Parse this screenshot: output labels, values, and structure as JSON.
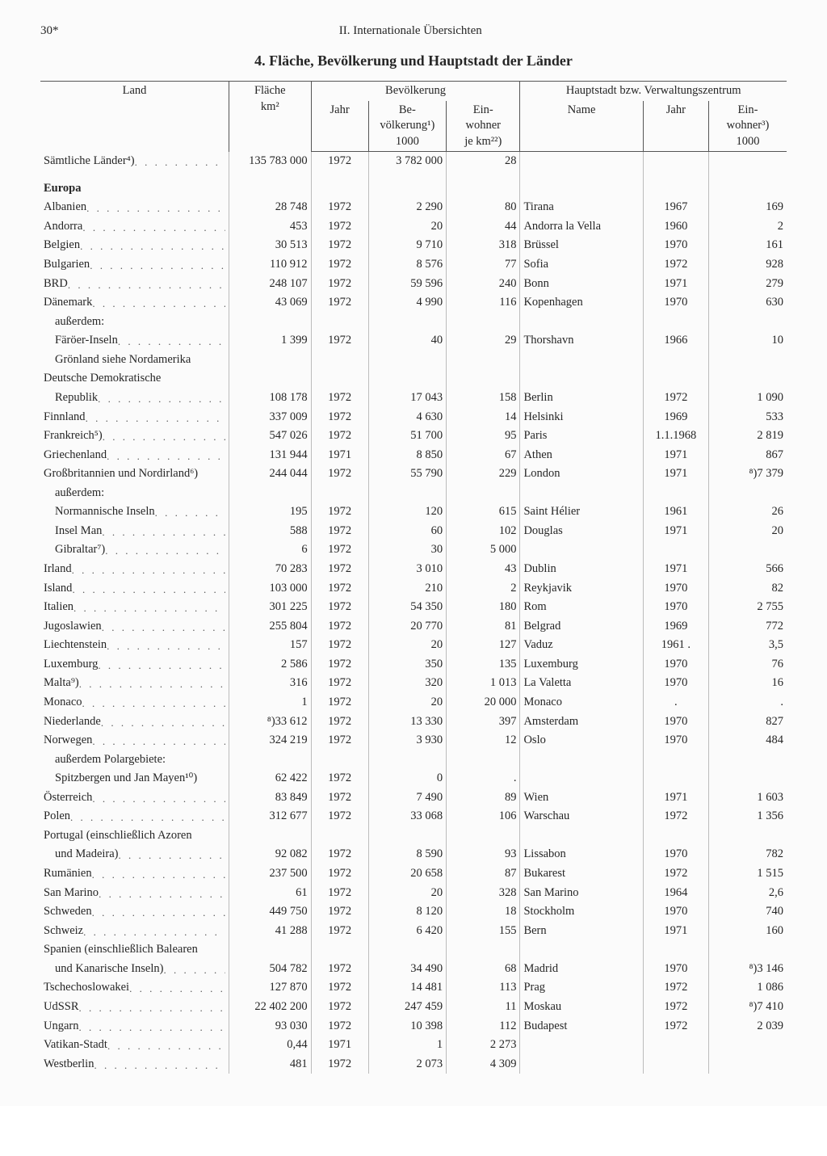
{
  "page": {
    "number": "30*",
    "running_head": "II. Internationale Übersichten",
    "title": "4. Fläche, Bevölkerung und Hauptstadt der Länder"
  },
  "columns": {
    "land": "Land",
    "flaeche": "Fläche\nkm²",
    "bev_group": "Bevölkerung",
    "haupt_group": "Hauptstadt bzw. Verwaltungszentrum",
    "jahr": "Jahr",
    "bev": "Be-\nvölkerung¹)\n1000",
    "dichte": "Ein-\nwohner\nje km²²)",
    "name": "Name",
    "hjahr": "Jahr",
    "hbev": "Ein-\nwohner³)\n1000"
  },
  "rows": [
    {
      "type": "row",
      "indent": 0,
      "dots": true,
      "land": "Sämtliche Länder⁴)",
      "flaeche": "135 783 000",
      "jahr": "1972",
      "bev": "3 782 000",
      "dichte": "28",
      "cap": "",
      "cjahr": "",
      "cbev": "",
      "pad_top": true
    },
    {
      "type": "section",
      "land": "Europa"
    },
    {
      "type": "row",
      "indent": 0,
      "dots": true,
      "land": "Albanien",
      "flaeche": "28 748",
      "jahr": "1972",
      "bev": "2 290",
      "dichte": "80",
      "cap": "Tirana",
      "cjahr": "1967",
      "cbev": "169"
    },
    {
      "type": "row",
      "indent": 0,
      "dots": true,
      "land": "Andorra",
      "flaeche": "453",
      "jahr": "1972",
      "bev": "20",
      "dichte": "44",
      "cap": "Andorra la Vella",
      "cjahr": "1960",
      "cbev": "2"
    },
    {
      "type": "row",
      "indent": 0,
      "dots": true,
      "land": "Belgien",
      "flaeche": "30 513",
      "jahr": "1972",
      "bev": "9 710",
      "dichte": "318",
      "cap": "Brüssel",
      "cjahr": "1970",
      "cbev": "161"
    },
    {
      "type": "row",
      "indent": 0,
      "dots": true,
      "land": "Bulgarien",
      "flaeche": "110 912",
      "jahr": "1972",
      "bev": "8 576",
      "dichte": "77",
      "cap": "Sofia",
      "cjahr": "1972",
      "cbev": "928"
    },
    {
      "type": "row",
      "indent": 0,
      "dots": true,
      "land": "BRD",
      "flaeche": "248 107",
      "jahr": "1972",
      "bev": "59 596",
      "dichte": "240",
      "cap": "Bonn",
      "cjahr": "1971",
      "cbev": "279"
    },
    {
      "type": "row",
      "indent": 0,
      "dots": true,
      "land": "Dänemark",
      "flaeche": "43 069",
      "jahr": "1972",
      "bev": "4 990",
      "dichte": "116",
      "cap": "Kopenhagen",
      "cjahr": "1970",
      "cbev": "630"
    },
    {
      "type": "subsection",
      "indent": 1,
      "land": "außerdem:"
    },
    {
      "type": "row",
      "indent": 1,
      "dots": true,
      "land": "Färöer-Inseln",
      "flaeche": "1 399",
      "jahr": "1972",
      "bev": "40",
      "dichte": "29",
      "cap": "Thorshavn",
      "cjahr": "1966",
      "cbev": "10"
    },
    {
      "type": "row",
      "indent": 1,
      "dots": false,
      "land": "Grönland siehe Nordamerika",
      "flaeche": "",
      "jahr": "",
      "bev": "",
      "dichte": "",
      "cap": "",
      "cjahr": "",
      "cbev": ""
    },
    {
      "type": "row",
      "indent": 0,
      "dots": false,
      "land": "Deutsche Demokratische",
      "flaeche": "",
      "jahr": "",
      "bev": "",
      "dichte": "",
      "cap": "",
      "cjahr": "",
      "cbev": ""
    },
    {
      "type": "row",
      "indent": 1,
      "dots": true,
      "land": "Republik",
      "flaeche": "108 178",
      "jahr": "1972",
      "bev": "17 043",
      "dichte": "158",
      "cap": "Berlin",
      "cjahr": "1972",
      "cbev": "1 090"
    },
    {
      "type": "row",
      "indent": 0,
      "dots": true,
      "land": "Finnland",
      "flaeche": "337 009",
      "jahr": "1972",
      "bev": "4 630",
      "dichte": "14",
      "cap": "Helsinki",
      "cjahr": "1969",
      "cbev": "533"
    },
    {
      "type": "row",
      "indent": 0,
      "dots": true,
      "land": "Frankreich⁵)",
      "flaeche": "547 026",
      "jahr": "1972",
      "bev": "51 700",
      "dichte": "95",
      "cap": "Paris",
      "cjahr": "1.1.1968",
      "cbev": "2 819"
    },
    {
      "type": "row",
      "indent": 0,
      "dots": true,
      "land": "Griechenland",
      "flaeche": "131 944",
      "jahr": "1971",
      "bev": "8 850",
      "dichte": "67",
      "cap": "Athen",
      "cjahr": "1971",
      "cbev": "867"
    },
    {
      "type": "row",
      "indent": 0,
      "dots": false,
      "land": "Großbritannien und Nordirland⁶)",
      "flaeche": "244 044",
      "jahr": "1972",
      "bev": "55 790",
      "dichte": "229",
      "cap": "London",
      "cjahr": "1971",
      "cbev": "⁸)7 379"
    },
    {
      "type": "subsection",
      "indent": 1,
      "land": "außerdem:"
    },
    {
      "type": "row",
      "indent": 1,
      "dots": true,
      "land": "Normannische Inseln",
      "flaeche": "195",
      "jahr": "1972",
      "bev": "120",
      "dichte": "615",
      "cap": "Saint Hélier",
      "cjahr": "1961",
      "cbev": "26"
    },
    {
      "type": "row",
      "indent": 1,
      "dots": true,
      "land": "Insel Man",
      "flaeche": "588",
      "jahr": "1972",
      "bev": "60",
      "dichte": "102",
      "cap": "Douglas",
      "cjahr": "1971",
      "cbev": "20"
    },
    {
      "type": "row",
      "indent": 1,
      "dots": true,
      "land": "Gibraltar⁷)",
      "flaeche": "6",
      "jahr": "1972",
      "bev": "30",
      "dichte": "5 000",
      "cap": "",
      "cjahr": "",
      "cbev": ""
    },
    {
      "type": "row",
      "indent": 0,
      "dots": true,
      "land": "Irland",
      "flaeche": "70 283",
      "jahr": "1972",
      "bev": "3 010",
      "dichte": "43",
      "cap": "Dublin",
      "cjahr": "1971",
      "cbev": "566"
    },
    {
      "type": "row",
      "indent": 0,
      "dots": true,
      "land": "Island",
      "flaeche": "103 000",
      "jahr": "1972",
      "bev": "210",
      "dichte": "2",
      "cap": "Reykjavik",
      "cjahr": "1970",
      "cbev": "82"
    },
    {
      "type": "row",
      "indent": 0,
      "dots": true,
      "land": "Italien",
      "flaeche": "301 225",
      "jahr": "1972",
      "bev": "54 350",
      "dichte": "180",
      "cap": "Rom",
      "cjahr": "1970",
      "cbev": "2 755"
    },
    {
      "type": "row",
      "indent": 0,
      "dots": true,
      "land": "Jugoslawien",
      "flaeche": "255 804",
      "jahr": "1972",
      "bev": "20 770",
      "dichte": "81",
      "cap": "Belgrad",
      "cjahr": "1969",
      "cbev": "772"
    },
    {
      "type": "row",
      "indent": 0,
      "dots": true,
      "land": "Liechtenstein",
      "flaeche": "157",
      "jahr": "1972",
      "bev": "20",
      "dichte": "127",
      "cap": "Vaduz",
      "cjahr": "1961 .",
      "cbev": "3,5"
    },
    {
      "type": "row",
      "indent": 0,
      "dots": true,
      "land": "Luxemburg",
      "flaeche": "2 586",
      "jahr": "1972",
      "bev": "350",
      "dichte": "135",
      "cap": "Luxemburg",
      "cjahr": "1970",
      "cbev": "76"
    },
    {
      "type": "row",
      "indent": 0,
      "dots": true,
      "land": "Malta⁹)",
      "flaeche": "316",
      "jahr": "1972",
      "bev": "320",
      "dichte": "1 013",
      "cap": "La Valetta",
      "cjahr": "1970",
      "cbev": "16"
    },
    {
      "type": "row",
      "indent": 0,
      "dots": true,
      "land": "Monaco",
      "flaeche": "1",
      "jahr": "1972",
      "bev": "20",
      "dichte": "20 000",
      "cap": "Monaco",
      "cjahr": ".",
      "cbev": "."
    },
    {
      "type": "row",
      "indent": 0,
      "dots": true,
      "land": "Niederlande",
      "flaeche": "⁸)33 612",
      "jahr": "1972",
      "bev": "13 330",
      "dichte": "397",
      "cap": "Amsterdam",
      "cjahr": "1970",
      "cbev": "827"
    },
    {
      "type": "row",
      "indent": 0,
      "dots": true,
      "land": "Norwegen",
      "flaeche": "324 219",
      "jahr": "1972",
      "bev": "3 930",
      "dichte": "12",
      "cap": "Oslo",
      "cjahr": "1970",
      "cbev": "484"
    },
    {
      "type": "subsection",
      "indent": 1,
      "land": "außerdem Polargebiete:"
    },
    {
      "type": "row",
      "indent": 1,
      "dots": false,
      "land": "Spitzbergen und Jan Mayen¹⁰)",
      "flaeche": "62 422",
      "jahr": "1972",
      "bev": "0",
      "dichte": ".",
      "cap": "",
      "cjahr": "",
      "cbev": ""
    },
    {
      "type": "row",
      "indent": 0,
      "dots": true,
      "land": "Österreich",
      "flaeche": "83 849",
      "jahr": "1972",
      "bev": "7 490",
      "dichte": "89",
      "cap": "Wien",
      "cjahr": "1971",
      "cbev": "1 603"
    },
    {
      "type": "row",
      "indent": 0,
      "dots": true,
      "land": "Polen",
      "flaeche": "312 677",
      "jahr": "1972",
      "bev": "33 068",
      "dichte": "106",
      "cap": "Warschau",
      "cjahr": "1972",
      "cbev": "1 356"
    },
    {
      "type": "row",
      "indent": 0,
      "dots": false,
      "land": "Portugal (einschließlich Azoren",
      "flaeche": "",
      "jahr": "",
      "bev": "",
      "dichte": "",
      "cap": "",
      "cjahr": "",
      "cbev": ""
    },
    {
      "type": "row",
      "indent": 1,
      "dots": true,
      "land": "und Madeira)",
      "flaeche": "92 082",
      "jahr": "1972",
      "bev": "8 590",
      "dichte": "93",
      "cap": "Lissabon",
      "cjahr": "1970",
      "cbev": "782"
    },
    {
      "type": "row",
      "indent": 0,
      "dots": true,
      "land": "Rumänien",
      "flaeche": "237 500",
      "jahr": "1972",
      "bev": "20 658",
      "dichte": "87",
      "cap": "Bukarest",
      "cjahr": "1972",
      "cbev": "1 515"
    },
    {
      "type": "row",
      "indent": 0,
      "dots": true,
      "land": "San Marino",
      "flaeche": "61",
      "jahr": "1972",
      "bev": "20",
      "dichte": "328",
      "cap": "San Marino",
      "cjahr": "1964",
      "cbev": "2,6"
    },
    {
      "type": "row",
      "indent": 0,
      "dots": true,
      "land": "Schweden",
      "flaeche": "449 750",
      "jahr": "1972",
      "bev": "8 120",
      "dichte": "18",
      "cap": "Stockholm",
      "cjahr": "1970",
      "cbev": "740"
    },
    {
      "type": "row",
      "indent": 0,
      "dots": true,
      "land": "Schweiz",
      "flaeche": "41 288",
      "jahr": "1972",
      "bev": "6 420",
      "dichte": "155",
      "cap": "Bern",
      "cjahr": "1971",
      "cbev": "160"
    },
    {
      "type": "row",
      "indent": 0,
      "dots": false,
      "land": "Spanien (einschließlich Balearen",
      "flaeche": "",
      "jahr": "",
      "bev": "",
      "dichte": "",
      "cap": "",
      "cjahr": "",
      "cbev": ""
    },
    {
      "type": "row",
      "indent": 1,
      "dots": true,
      "land": "und Kanarische Inseln)",
      "flaeche": "504 782",
      "jahr": "1972",
      "bev": "34 490",
      "dichte": "68",
      "cap": "Madrid",
      "cjahr": "1970",
      "cbev": "⁸)3 146"
    },
    {
      "type": "row",
      "indent": 0,
      "dots": true,
      "land": "Tschechoslowakei",
      "flaeche": "127 870",
      "jahr": "1972",
      "bev": "14 481",
      "dichte": "113",
      "cap": "Prag",
      "cjahr": "1972",
      "cbev": "1 086"
    },
    {
      "type": "row",
      "indent": 0,
      "dots": true,
      "land": "UdSSR",
      "flaeche": "22 402 200",
      "jahr": "1972",
      "bev": "247 459",
      "dichte": "11",
      "cap": "Moskau",
      "cjahr": "1972",
      "cbev": "⁸)7 410"
    },
    {
      "type": "row",
      "indent": 0,
      "dots": true,
      "land": "Ungarn",
      "flaeche": "93 030",
      "jahr": "1972",
      "bev": "10 398",
      "dichte": "112",
      "cap": "Budapest",
      "cjahr": "1972",
      "cbev": "2 039"
    },
    {
      "type": "row",
      "indent": 0,
      "dots": true,
      "land": "Vatikan-Stadt",
      "flaeche": "0,44",
      "jahr": "1971",
      "bev": "1",
      "dichte": "2 273",
      "cap": "",
      "cjahr": "",
      "cbev": ""
    },
    {
      "type": "row",
      "indent": 0,
      "dots": true,
      "land": "Westberlin",
      "flaeche": "481",
      "jahr": "1972",
      "bev": "2 073",
      "dichte": "4 309",
      "cap": "",
      "cjahr": "",
      "cbev": ""
    }
  ],
  "style": {
    "text_color": "#262626",
    "rule_color": "#555555",
    "body_sep_color": "#bcbcbc",
    "background": "#fbfbfb",
    "font_size_pt": 11,
    "title_size_pt": 13.5
  }
}
